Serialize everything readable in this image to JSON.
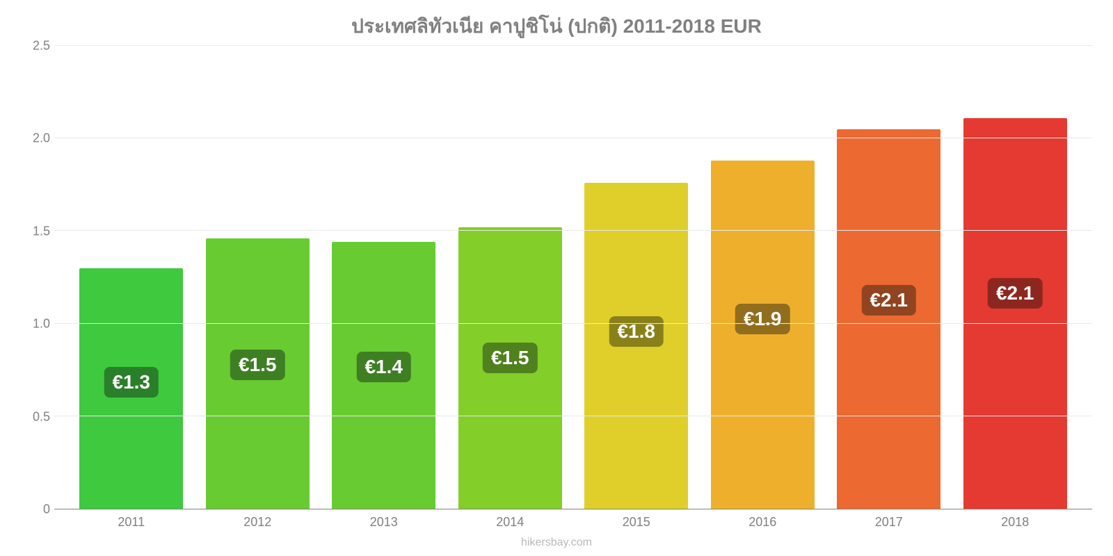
{
  "chart": {
    "type": "bar",
    "title": "ประเทศลิทัวเนีย คาปูชิโน่ (ปกติ) 2011-2018 EUR",
    "title_fontsize": 28,
    "title_color": "#808080",
    "background_color": "#ffffff",
    "grid_color": "#e9e9e9",
    "axis_color": "#808080",
    "ylim": [
      0,
      2.5
    ],
    "ytick_step": 0.5,
    "yticks": [
      "0",
      "0.5",
      "1.0",
      "1.5",
      "2.0",
      "2.5"
    ],
    "label_fontsize": 18,
    "bar_label_fontsize": 28,
    "bar_width": 0.82,
    "categories": [
      "2011",
      "2012",
      "2013",
      "2014",
      "2015",
      "2016",
      "2017",
      "2018"
    ],
    "values": [
      1.3,
      1.46,
      1.44,
      1.52,
      1.76,
      1.88,
      2.05,
      2.11
    ],
    "value_labels": [
      "€1.3",
      "€1.5",
      "€1.4",
      "€1.5",
      "€1.8",
      "€1.9",
      "€2.1",
      "€2.1"
    ],
    "bar_colors": [
      "#3ec93e",
      "#68cb32",
      "#68cb32",
      "#83ce29",
      "#e0cf2a",
      "#eeb02c",
      "#ec6931",
      "#e43a32"
    ],
    "label_bg_colors": [
      "#2a7f2a",
      "#3f7f23",
      "#3f7f23",
      "#4f811f",
      "#8a801a",
      "#916d1e",
      "#91441f",
      "#8c2720"
    ],
    "credit": "hikersbay.com",
    "credit_color": "#b8b8b8"
  }
}
